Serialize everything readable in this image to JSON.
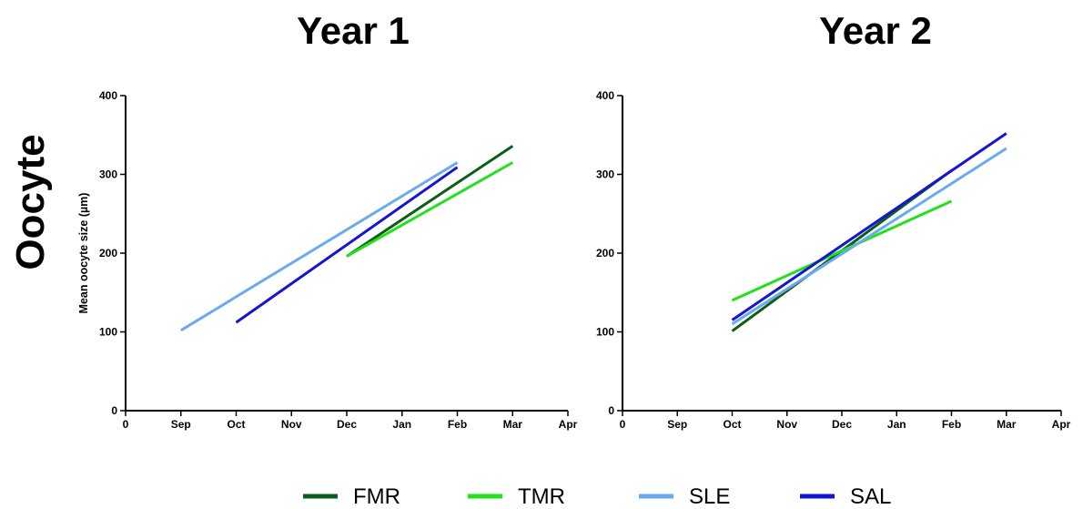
{
  "figure": {
    "row_label": "Oocyte"
  },
  "chart_data": [
    {
      "type": "line",
      "title": "Year 1",
      "ylabel": "Mean oocyte size (µm)",
      "xlabel": "",
      "x_categories": [
        "0",
        "Sep",
        "Oct",
        "Nov",
        "Dec",
        "Jan",
        "Feb",
        "Mar",
        "Apr"
      ],
      "ylim": [
        0,
        400
      ],
      "yticks": [
        0,
        100,
        200,
        300,
        400
      ],
      "grid": false,
      "series": [
        {
          "name": "FMR",
          "color": "#0b5d18",
          "points": [
            {
              "x": 4.0,
              "y": 196
            },
            {
              "x": 7.0,
              "y": 336
            }
          ]
        },
        {
          "name": "TMR",
          "color": "#22e01c",
          "points": [
            {
              "x": 4.0,
              "y": 196
            },
            {
              "x": 7.0,
              "y": 315
            }
          ]
        },
        {
          "name": "SLE",
          "color": "#6aaaf0",
          "points": [
            {
              "x": 1.0,
              "y": 102
            },
            {
              "x": 6.0,
              "y": 315
            }
          ]
        },
        {
          "name": "SAL",
          "color": "#1414d6",
          "points": [
            {
              "x": 2.0,
              "y": 112
            },
            {
              "x": 6.0,
              "y": 309
            }
          ]
        }
      ]
    },
    {
      "type": "line",
      "title": "Year 2",
      "ylabel": "",
      "xlabel": "",
      "x_categories": [
        "0",
        "Sep",
        "Oct",
        "Nov",
        "Dec",
        "Jan",
        "Feb",
        "Mar",
        "Apr"
      ],
      "ylim": [
        0,
        400
      ],
      "yticks": [
        0,
        100,
        200,
        300,
        400
      ],
      "grid": false,
      "series": [
        {
          "name": "FMR",
          "color": "#0b5d18",
          "points": [
            {
              "x": 2.0,
              "y": 101
            },
            {
              "x": 6.0,
              "y": 305
            }
          ]
        },
        {
          "name": "TMR",
          "color": "#22e01c",
          "points": [
            {
              "x": 2.0,
              "y": 140
            },
            {
              "x": 6.0,
              "y": 266
            }
          ]
        },
        {
          "name": "SLE",
          "color": "#6aaaf0",
          "points": [
            {
              "x": 2.0,
              "y": 110
            },
            {
              "x": 7.0,
              "y": 333
            }
          ]
        },
        {
          "name": "SAL",
          "color": "#1414d6",
          "points": [
            {
              "x": 2.0,
              "y": 115
            },
            {
              "x": 7.0,
              "y": 352
            }
          ]
        }
      ]
    }
  ],
  "legend": {
    "placement": "bottom",
    "entries": [
      {
        "label": "FMR",
        "color": "#0b5d18"
      },
      {
        "label": "TMR",
        "color": "#22e01c"
      },
      {
        "label": "SLE",
        "color": "#6aaaf0"
      },
      {
        "label": "SAL",
        "color": "#1414d6"
      }
    ]
  }
}
